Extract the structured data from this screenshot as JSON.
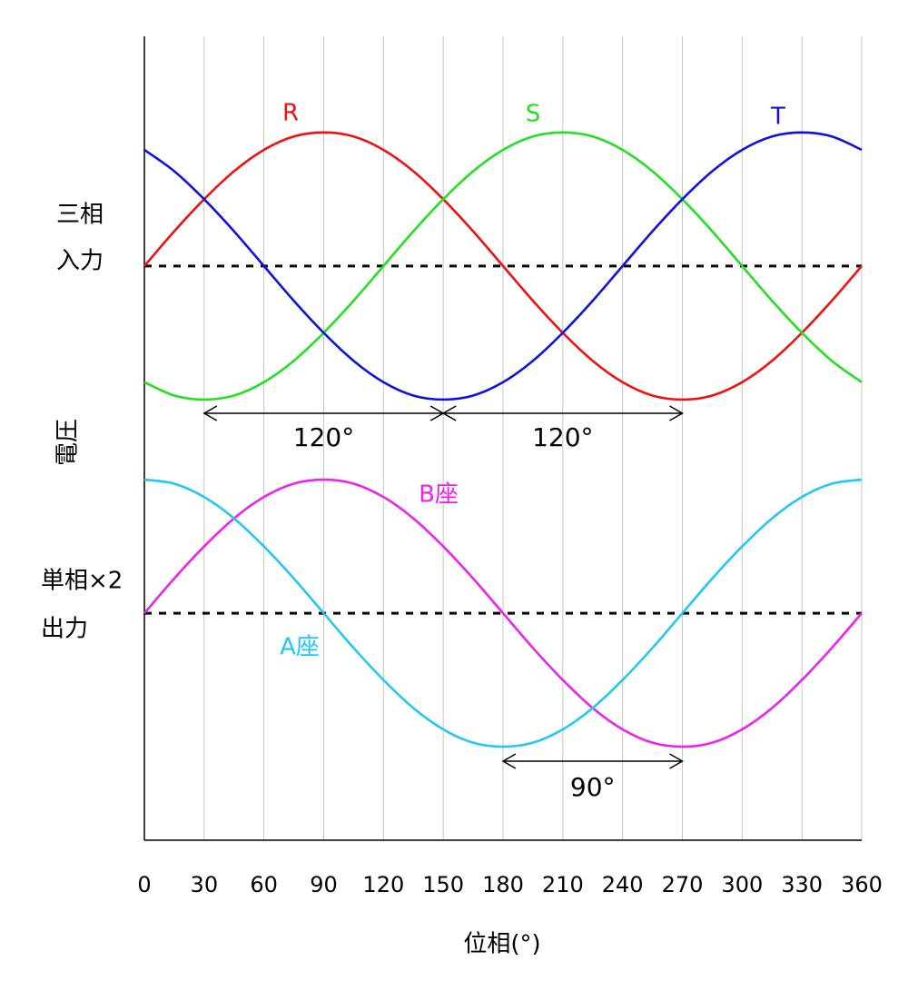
{
  "chart_data": {
    "type": "line",
    "xlabel": "位相(°)",
    "ylabel": "電圧",
    "group_labels": [
      [
        "三相",
        "入力"
      ],
      [
        "単相×2",
        "出力"
      ]
    ],
    "x": [
      0,
      15,
      30,
      45,
      60,
      75,
      90,
      105,
      120,
      135,
      150,
      165,
      180,
      195,
      210,
      225,
      240,
      255,
      270,
      285,
      300,
      315,
      330,
      345,
      360
    ],
    "series": [
      {
        "name": "R",
        "color": "#ee1111",
        "values": [
          0,
          0.26,
          0.5,
          0.71,
          0.87,
          0.97,
          1,
          0.97,
          0.87,
          0.71,
          0.5,
          0.26,
          0,
          -0.26,
          -0.5,
          -0.71,
          -0.87,
          -0.97,
          -1,
          -0.97,
          -0.87,
          -0.71,
          -0.5,
          -0.26,
          0
        ]
      },
      {
        "name": "S",
        "color": "#22e022",
        "values": [
          -0.87,
          -0.97,
          -1,
          -0.97,
          -0.87,
          -0.71,
          -0.5,
          -0.26,
          0,
          0.26,
          0.5,
          0.71,
          0.87,
          0.97,
          1,
          0.97,
          0.87,
          0.71,
          0.5,
          0.26,
          0,
          -0.26,
          -0.5,
          -0.71,
          -0.87
        ]
      },
      {
        "name": "T",
        "color": "#1111dd",
        "values": [
          0.87,
          0.71,
          0.5,
          0.26,
          0,
          -0.26,
          -0.5,
          -0.71,
          -0.87,
          -0.97,
          -1,
          -0.97,
          -0.87,
          -0.71,
          -0.5,
          -0.26,
          0,
          0.26,
          0.5,
          0.71,
          0.87,
          0.97,
          1,
          0.97,
          0.87
        ]
      },
      {
        "name": "B座",
        "color": "#ee22ee",
        "values": [
          -2.6,
          -2.34,
          -2.1,
          -1.89,
          -1.73,
          -1.63,
          -1.6,
          -1.63,
          -1.73,
          -1.89,
          -2.1,
          -2.34,
          -2.6,
          -2.86,
          -3.1,
          -3.31,
          -3.47,
          -3.57,
          -3.6,
          -3.57,
          -3.47,
          -3.31,
          -3.1,
          -2.86,
          -2.6
        ]
      },
      {
        "name": "A座",
        "color": "#22c8f0",
        "values": [
          -1.6,
          -1.63,
          -1.73,
          -1.89,
          -2.1,
          -2.34,
          -2.6,
          -2.86,
          -3.1,
          -3.31,
          -3.47,
          -3.57,
          -3.6,
          -3.57,
          -3.47,
          -3.31,
          -3.1,
          -2.86,
          -2.6,
          -2.34,
          -2.1,
          -1.89,
          -1.73,
          -1.63,
          -1.6
        ]
      }
    ],
    "reference_lines": [
      0,
      -2.6
    ],
    "annotations": [
      {
        "text": "120°",
        "from": 30,
        "to": 150
      },
      {
        "text": "120°",
        "from": 150,
        "to": 270
      },
      {
        "text": "90°",
        "from": 180,
        "to": 270
      }
    ],
    "xlim": [
      0,
      360
    ],
    "xticks": [
      0,
      30,
      60,
      90,
      120,
      150,
      180,
      210,
      240,
      270,
      300,
      330,
      360
    ],
    "ylim": [
      -4.3,
      1.72
    ],
    "grid": true
  }
}
